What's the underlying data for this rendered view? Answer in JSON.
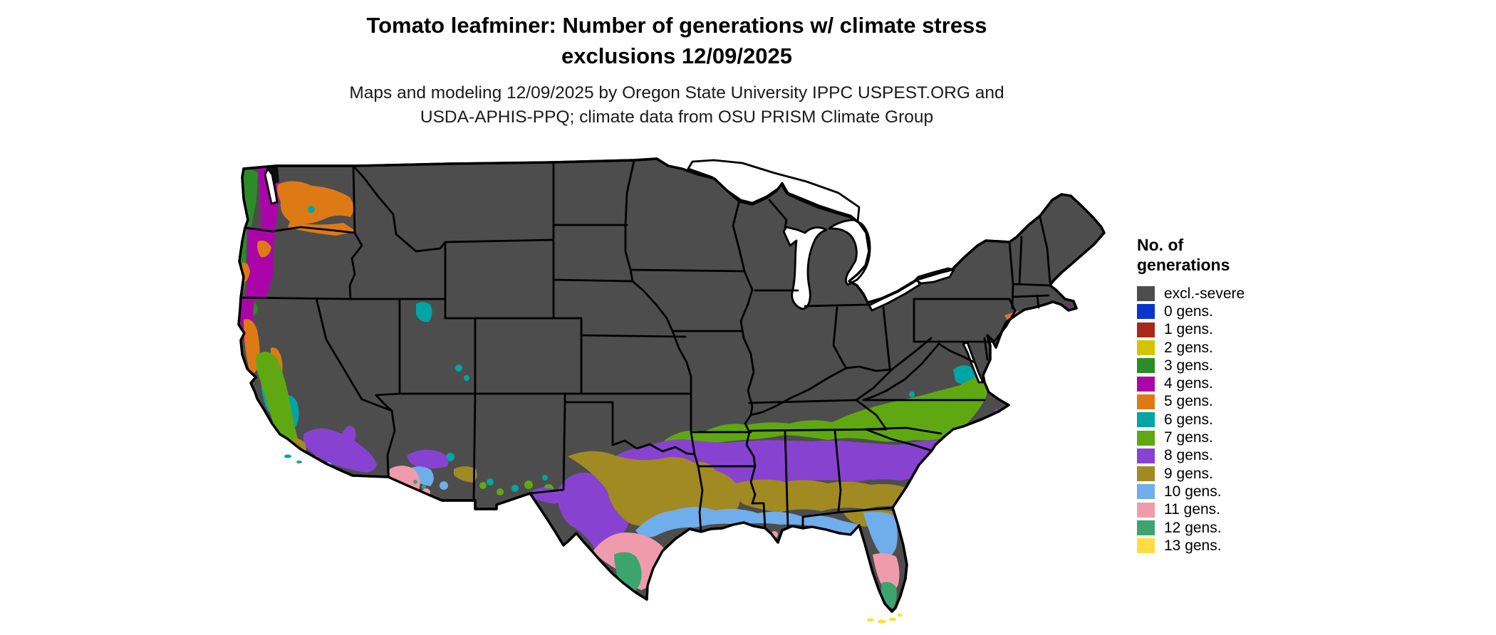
{
  "title": {
    "line1": "Tomato leafminer: Number of generations w/ climate stress",
    "line2": "exclusions 12/09/2025"
  },
  "subtitle": {
    "line1": "Maps and modeling 12/09/2025 by Oregon State University IPPC USPEST.ORG and",
    "line2": "USDA-APHIS-PPQ; climate data from OSU PRISM Climate Group"
  },
  "legend": {
    "title_line1": "No. of",
    "title_line2": "generations",
    "items": [
      {
        "key": "excl",
        "label": "excl.-severe",
        "color": "#4D4D4D"
      },
      {
        "key": "g0",
        "label": "0 gens.",
        "color": "#0A36CC"
      },
      {
        "key": "g1",
        "label": "1 gens.",
        "color": "#A8291B"
      },
      {
        "key": "g2",
        "label": "2 gens.",
        "color": "#D2C500"
      },
      {
        "key": "g3",
        "label": "3 gens.",
        "color": "#2B8C28"
      },
      {
        "key": "g4",
        "label": "4 gens.",
        "color": "#AB05A9"
      },
      {
        "key": "g5",
        "label": "5 gens.",
        "color": "#DE7A16"
      },
      {
        "key": "g6",
        "label": "6 gens.",
        "color": "#02A5A5"
      },
      {
        "key": "g7",
        "label": "7 gens.",
        "color": "#5FA812"
      },
      {
        "key": "g8",
        "label": "8 gens.",
        "color": "#8743D0"
      },
      {
        "key": "g9",
        "label": "9 gens.",
        "color": "#A18A22"
      },
      {
        "key": "g10",
        "label": "10 gens.",
        "color": "#70ADEB"
      },
      {
        "key": "g11",
        "label": "11 gens.",
        "color": "#F09BAC"
      },
      {
        "key": "g12",
        "label": "12 gens.",
        "color": "#3BA56D"
      },
      {
        "key": "g13",
        "label": "13 gens.",
        "color": "#FFDD40"
      }
    ]
  },
  "map": {
    "land_color": "#4D4D4D",
    "border_color": "#000000",
    "water_color": "#FFFFFF",
    "nodata_color": "#0D0D0D"
  }
}
